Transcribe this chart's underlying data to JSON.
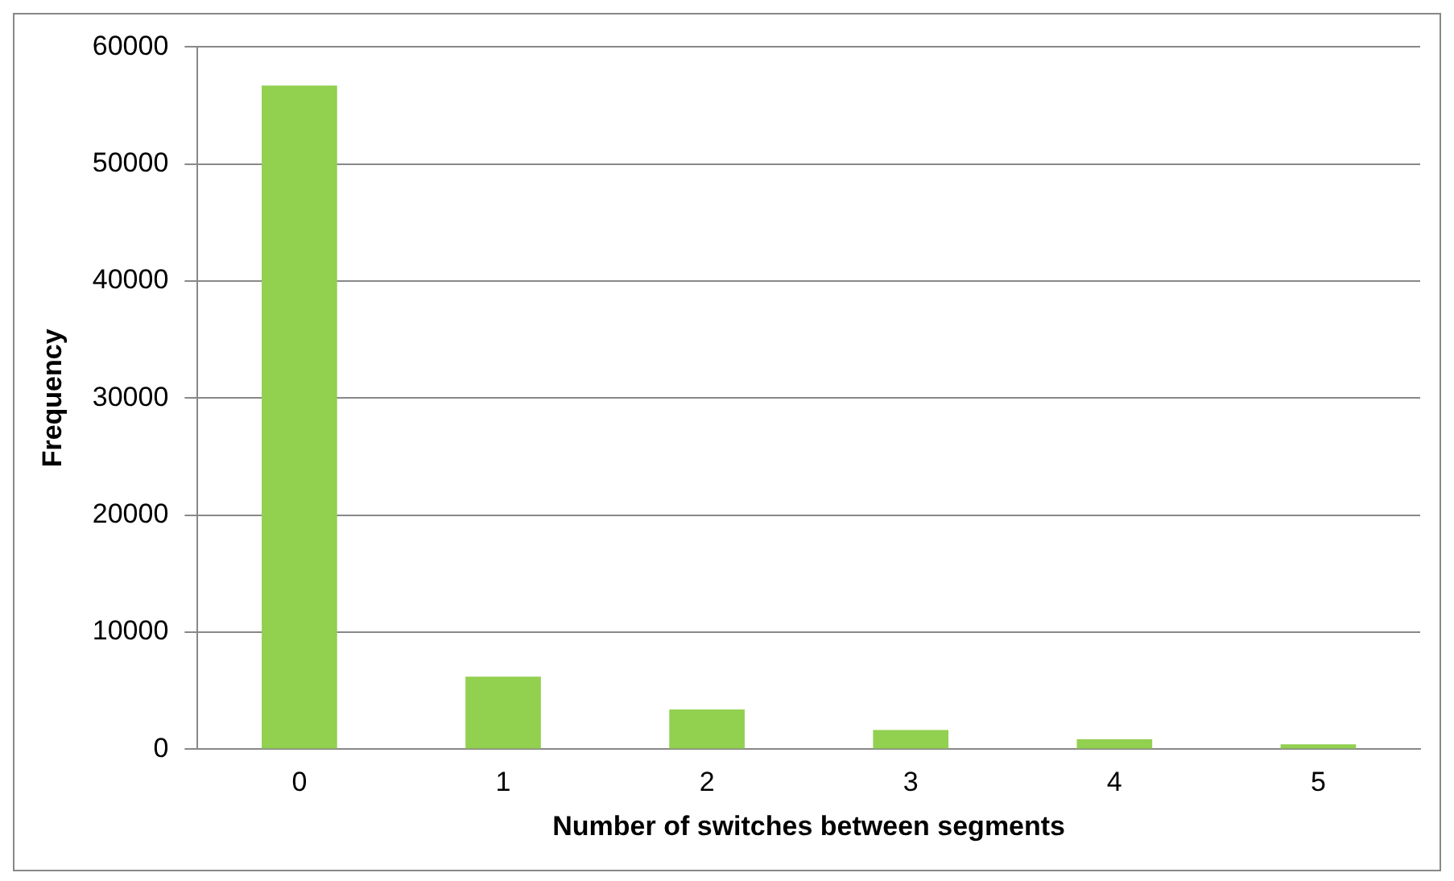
{
  "chart_data": {
    "type": "bar",
    "xlabel": "Number of switches between segments",
    "ylabel": "Frequency",
    "categories": [
      "0",
      "1",
      "2",
      "3",
      "4",
      "5"
    ],
    "values": [
      56700,
      6200,
      3400,
      1650,
      860,
      420
    ],
    "color": "#92d050",
    "ylim": [
      0,
      60000
    ],
    "yticks": [
      0,
      10000,
      20000,
      30000,
      40000,
      50000,
      60000
    ],
    "grid": "y",
    "legend": false
  }
}
